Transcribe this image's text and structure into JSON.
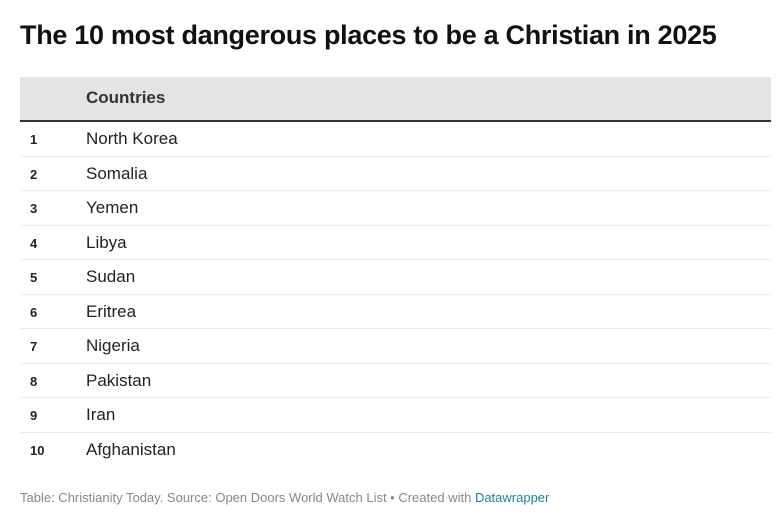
{
  "title": "The 10 most dangerous places to be a Christian in 2025",
  "chart_data": {
    "type": "table",
    "title": "The 10 most dangerous places to be a Christian in 2025",
    "columns": [
      "",
      "Countries"
    ],
    "rows": [
      {
        "rank": "1",
        "country": "North Korea"
      },
      {
        "rank": "2",
        "country": "Somalia"
      },
      {
        "rank": "3",
        "country": "Yemen"
      },
      {
        "rank": "4",
        "country": "Libya"
      },
      {
        "rank": "5",
        "country": "Sudan"
      },
      {
        "rank": "6",
        "country": "Eritrea"
      },
      {
        "rank": "7",
        "country": "Nigeria"
      },
      {
        "rank": "8",
        "country": "Pakistan"
      },
      {
        "rank": "9",
        "country": "Iran"
      },
      {
        "rank": "10",
        "country": "Afghanistan"
      }
    ]
  },
  "footer": {
    "text": "Table: Christianity Today. Source: Open Doors World Watch List • Created with ",
    "link_text": "Datawrapper",
    "link_color": "#1d81a2"
  }
}
